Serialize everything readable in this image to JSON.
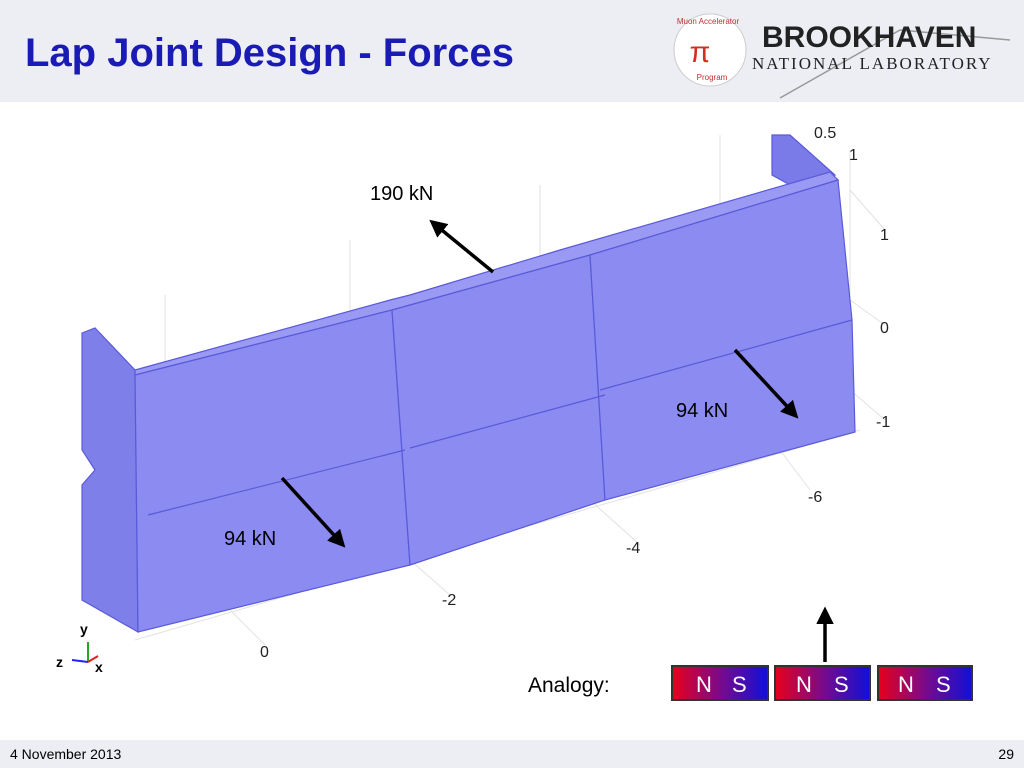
{
  "header": {
    "title": "Lap Joint Design - Forces",
    "logo_ring_top": "Muon Accelerator",
    "logo_ring_bottom": "Program",
    "logo_symbol": "π",
    "lab_name": "BROOKHAVEN",
    "lab_subtitle": "NATIONAL LABORATORY"
  },
  "figure": {
    "forces": [
      "190 kN",
      "94 kN",
      "94 kN"
    ],
    "axis_ticks_top": [
      "0.5",
      "1",
      "1",
      "0",
      "-1"
    ],
    "axis_ticks_bottom": [
      "-6",
      "-4",
      "-2",
      "0"
    ],
    "triad": [
      "y",
      "z",
      "x"
    ]
  },
  "analogy": {
    "label": "Analogy:",
    "magnets": [
      {
        "north": "N",
        "south": "S"
      },
      {
        "north": "N",
        "south": "S"
      },
      {
        "north": "N",
        "south": "S"
      }
    ]
  },
  "footer": {
    "date": "4 November 2013",
    "page": "29"
  }
}
